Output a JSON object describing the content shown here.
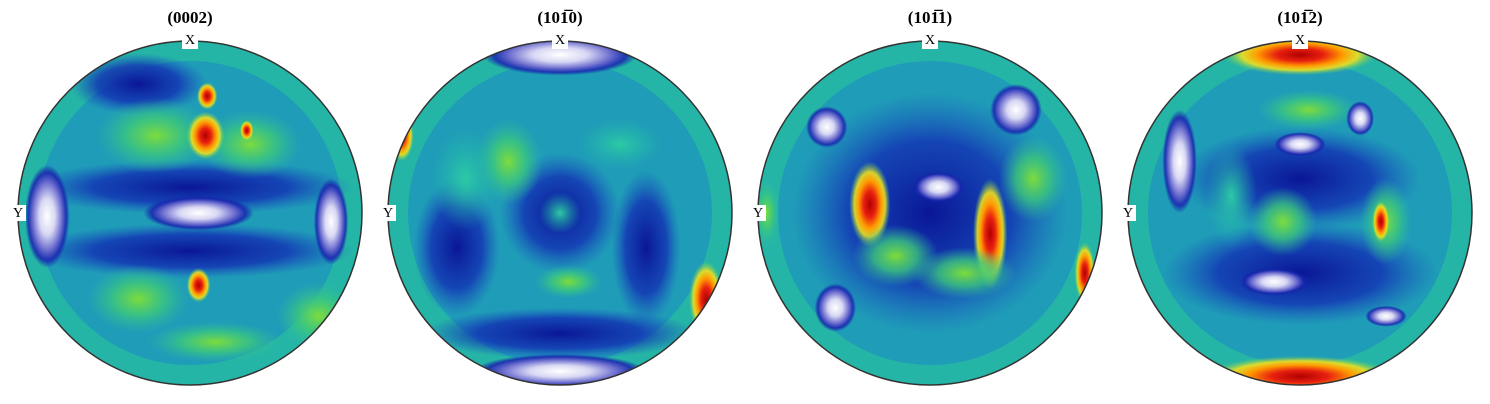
{
  "figures": [
    {
      "title": "(0002)",
      "x_label": "X",
      "y_label": "Y"
    },
    {
      "title": "(101̅0)",
      "x_label": "X",
      "y_label": "Y"
    },
    {
      "title": "(101̅1)",
      "x_label": "X",
      "y_label": "Y"
    },
    {
      "title": "(101̅2)",
      "x_label": "X",
      "y_label": "Y"
    }
  ]
}
